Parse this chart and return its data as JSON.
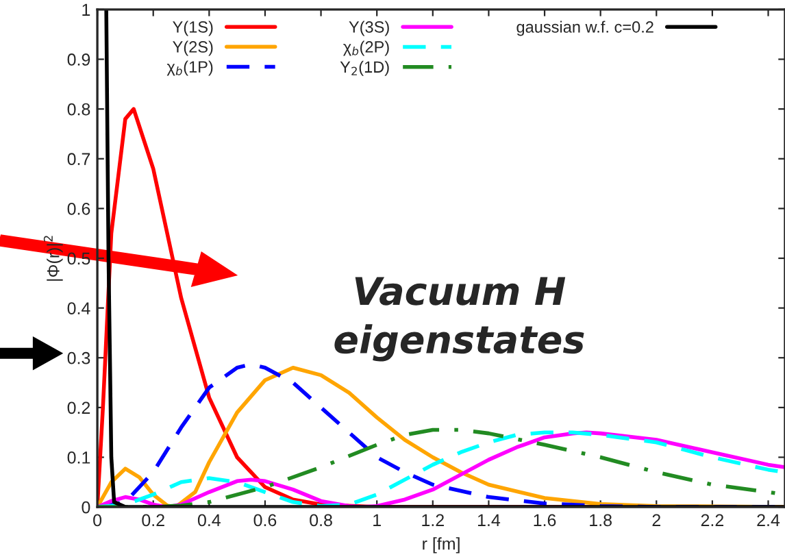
{
  "chart_data": {
    "type": "line",
    "xlabel": "r [fm]",
    "ylabel": "|Φ(r)|$^{2}$",
    "annotations": [
      "Vacuum H eigenstates"
    ],
    "xlim": [
      0,
      2.46
    ],
    "ylim": [
      0,
      1
    ],
    "xticks": [
      0,
      0.2,
      0.4,
      0.6,
      0.8,
      1,
      1.2,
      1.4,
      1.6,
      1.8,
      2,
      2.2,
      2.4
    ],
    "yticks": [
      0,
      0.1,
      0.2,
      0.3,
      0.4,
      0.5,
      0.6,
      0.7,
      0.8,
      0.9,
      1
    ],
    "grid": false,
    "legend": "top",
    "series": [
      {
        "name": "Υ(1S)",
        "color": "#ff0000",
        "line_style": "solid",
        "x": [
          0,
          0.02,
          0.05,
          0.1,
          0.13,
          0.2,
          0.3,
          0.4,
          0.5,
          0.6,
          0.7,
          0.8,
          1.0,
          2.46
        ],
        "values": [
          0,
          0.2,
          0.55,
          0.78,
          0.8,
          0.68,
          0.42,
          0.22,
          0.1,
          0.04,
          0.015,
          0.005,
          0,
          0
        ]
      },
      {
        "name": "Υ(2S)",
        "color": "#ffa500",
        "line_style": "solid",
        "x": [
          0,
          0.05,
          0.1,
          0.15,
          0.2,
          0.25,
          0.28,
          0.35,
          0.4,
          0.5,
          0.6,
          0.7,
          0.8,
          0.9,
          1.0,
          1.1,
          1.2,
          1.3,
          1.4,
          1.6,
          1.8,
          2.0,
          2.46
        ],
        "values": [
          0,
          0.05,
          0.077,
          0.06,
          0.025,
          0.003,
          0,
          0.03,
          0.09,
          0.19,
          0.255,
          0.28,
          0.265,
          0.23,
          0.18,
          0.135,
          0.1,
          0.07,
          0.045,
          0.018,
          0.006,
          0.002,
          0
        ]
      },
      {
        "name": "χ$_{b}$(1P)",
        "color": "#0000ff",
        "line_style": "dashed",
        "x": [
          0,
          0.1,
          0.2,
          0.3,
          0.4,
          0.5,
          0.55,
          0.6,
          0.7,
          0.8,
          0.9,
          1.0,
          1.1,
          1.2,
          1.4,
          1.6,
          1.8,
          2.0,
          2.46
        ],
        "values": [
          0,
          0.01,
          0.07,
          0.16,
          0.24,
          0.28,
          0.287,
          0.28,
          0.25,
          0.2,
          0.15,
          0.1,
          0.07,
          0.045,
          0.02,
          0.007,
          0.002,
          0,
          0
        ]
      },
      {
        "name": "Υ(3S)",
        "color": "#ff00ff",
        "line_style": "solid",
        "x": [
          0,
          0.05,
          0.1,
          0.15,
          0.2,
          0.25,
          0.3,
          0.4,
          0.5,
          0.55,
          0.6,
          0.7,
          0.8,
          0.9,
          0.95,
          1.0,
          1.1,
          1.2,
          1.3,
          1.4,
          1.5,
          1.6,
          1.7,
          1.75,
          1.8,
          2.0,
          2.2,
          2.4,
          2.46
        ],
        "values": [
          0,
          0.012,
          0.02,
          0.015,
          0.005,
          0,
          0.005,
          0.03,
          0.052,
          0.055,
          0.052,
          0.035,
          0.012,
          0.002,
          0,
          0.002,
          0.015,
          0.035,
          0.065,
          0.095,
          0.12,
          0.14,
          0.148,
          0.15,
          0.148,
          0.135,
          0.11,
          0.085,
          0.08
        ]
      },
      {
        "name": "χ$_{b}$(2P)",
        "color": "#00ffff",
        "line_style": "dashed",
        "x": [
          0,
          0.1,
          0.2,
          0.3,
          0.4,
          0.5,
          0.6,
          0.7,
          0.8,
          0.9,
          1.0,
          1.1,
          1.2,
          1.3,
          1.4,
          1.5,
          1.6,
          1.7,
          1.8,
          2.0,
          2.2,
          2.4,
          2.46
        ],
        "values": [
          0,
          0.005,
          0.025,
          0.05,
          0.058,
          0.05,
          0.03,
          0.01,
          0.002,
          0.005,
          0.025,
          0.055,
          0.085,
          0.11,
          0.13,
          0.145,
          0.15,
          0.15,
          0.145,
          0.13,
          0.1,
          0.075,
          0.07
        ]
      },
      {
        "name": "Υ$_{2}$(1D)",
        "color": "#228b22",
        "line_style": "dashdot",
        "x": [
          0,
          0.2,
          0.3,
          0.4,
          0.6,
          0.8,
          1.0,
          1.1,
          1.2,
          1.3,
          1.4,
          1.6,
          1.8,
          2.0,
          2.2,
          2.4,
          2.46
        ],
        "values": [
          0,
          0,
          0.003,
          0.01,
          0.04,
          0.08,
          0.125,
          0.145,
          0.155,
          0.155,
          0.148,
          0.125,
          0.1,
          0.07,
          0.045,
          0.03,
          0.025
        ]
      },
      {
        "name": "gaussian w.f. c=0.2",
        "color": "#000000",
        "line_style": "solid",
        "x": [
          0.032,
          0.04,
          0.05,
          0.06,
          0.1,
          2.46
        ],
        "values": [
          1.0,
          0.5,
          0.1,
          0.01,
          0,
          0
        ]
      }
    ]
  }
}
